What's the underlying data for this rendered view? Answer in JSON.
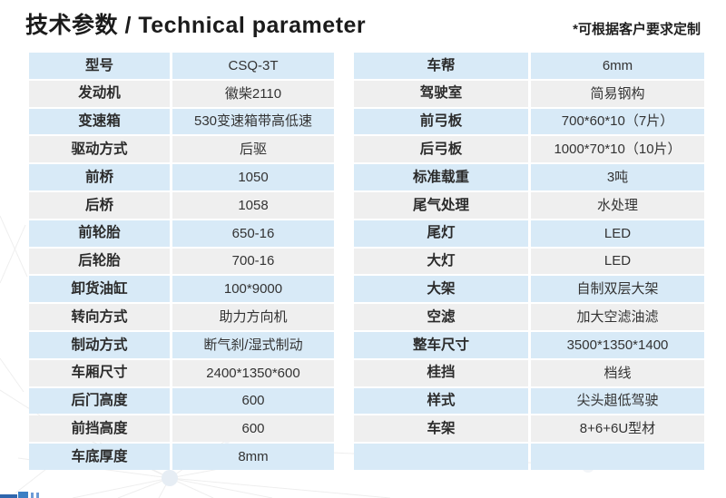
{
  "header": {
    "title": "技术参数 / Technical parameter",
    "note": "*可根据客户要求定制"
  },
  "tables": [
    {
      "name": "left-spec-table",
      "rows": [
        [
          "型号",
          "CSQ-3T"
        ],
        [
          "发动机",
          "徽柴2110"
        ],
        [
          "变速箱",
          "530变速箱带高低速"
        ],
        [
          "驱动方式",
          "后驱"
        ],
        [
          "前桥",
          "1050"
        ],
        [
          "后桥",
          "1058"
        ],
        [
          "前轮胎",
          "650-16"
        ],
        [
          "后轮胎",
          "700-16"
        ],
        [
          "卸货油缸",
          "100*9000"
        ],
        [
          "转向方式",
          "助力方向机"
        ],
        [
          "制动方式",
          "断气刹/湿式制动"
        ],
        [
          "车厢尺寸",
          "2400*1350*600"
        ],
        [
          "后门高度",
          "600"
        ],
        [
          "前挡高度",
          "600"
        ],
        [
          "车底厚度",
          "8mm"
        ]
      ]
    },
    {
      "name": "right-spec-table",
      "rows": [
        [
          "车帮",
          "6mm"
        ],
        [
          "驾驶室",
          "简易钢构"
        ],
        [
          "前弓板",
          "700*60*10（7片）"
        ],
        [
          "后弓板",
          "1000*70*10（10片）"
        ],
        [
          "标准载重",
          "3吨"
        ],
        [
          "尾气处理",
          "水处理"
        ],
        [
          "尾灯",
          "LED"
        ],
        [
          "大灯",
          "LED"
        ],
        [
          "大架",
          "自制双层大架"
        ],
        [
          "空滤",
          "加大空滤油滤"
        ],
        [
          "整车尺寸",
          "3500*1350*1400"
        ],
        [
          "桂挡",
          "档线"
        ],
        [
          "样式",
          "尖头趄低驾驶"
        ],
        [
          "车架",
          "8+6+6U型材"
        ],
        [
          "",
          ""
        ]
      ]
    }
  ],
  "colors": {
    "row_blue": "#d8eaf7",
    "row_gray": "#efefef",
    "text": "#333333",
    "logo_blue": "#2f66ad"
  }
}
